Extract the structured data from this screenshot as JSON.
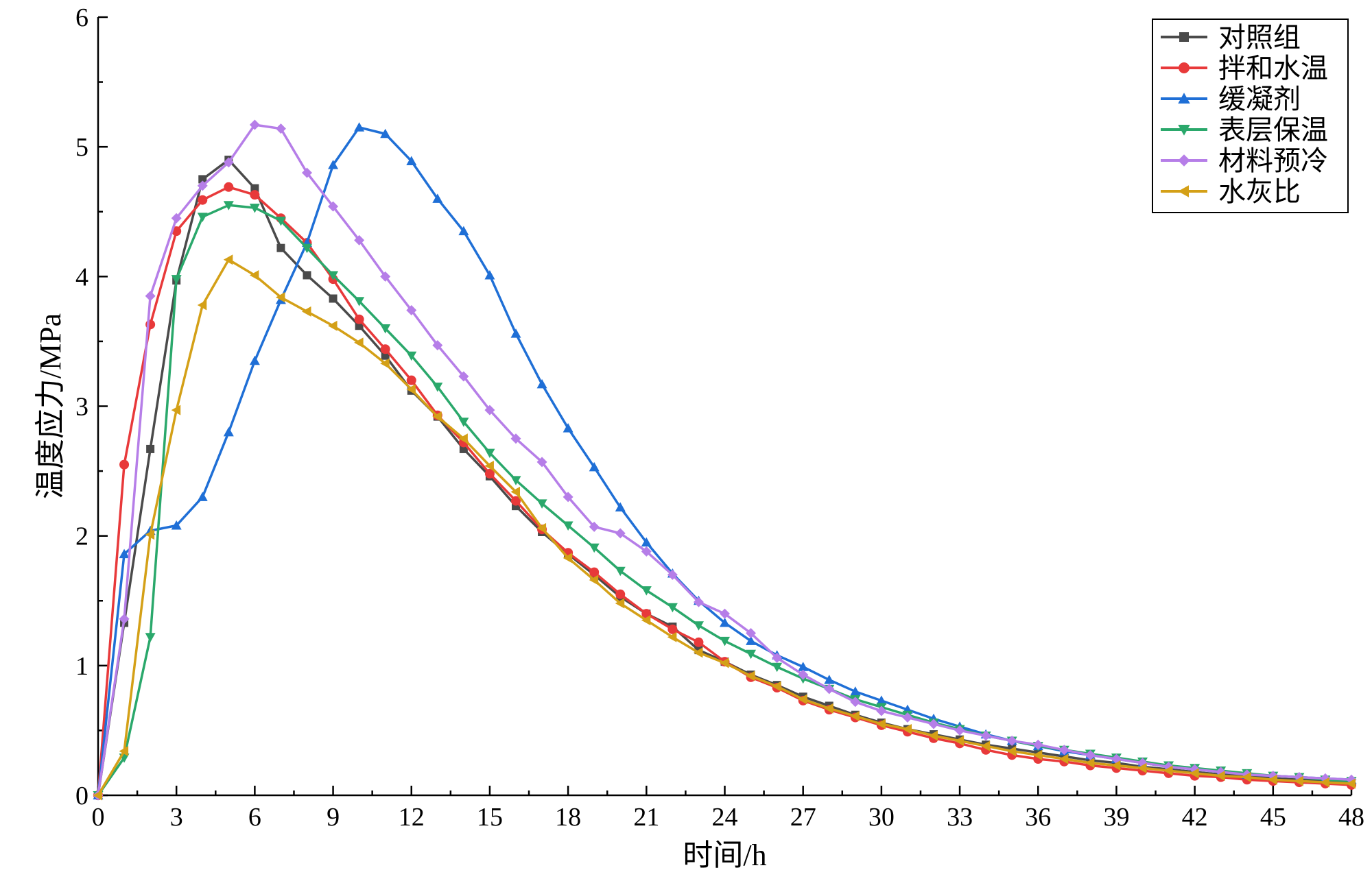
{
  "chart_data": {
    "type": "line",
    "xlabel": "时间/h",
    "ylabel": "温度应力/MPa",
    "xlim": [
      0,
      48
    ],
    "ylim": [
      0,
      6
    ],
    "xticks": [
      0,
      3,
      6,
      9,
      12,
      15,
      18,
      21,
      24,
      27,
      30,
      33,
      36,
      39,
      42,
      45,
      48
    ],
    "yticks": [
      0,
      1,
      2,
      3,
      4,
      5,
      6
    ],
    "grid": false,
    "legend_position": "top-right",
    "x": [
      0,
      1,
      2,
      3,
      4,
      5,
      6,
      7,
      8,
      9,
      10,
      11,
      12,
      13,
      14,
      15,
      16,
      17,
      18,
      19,
      20,
      21,
      22,
      23,
      24,
      25,
      26,
      27,
      28,
      29,
      30,
      31,
      32,
      33,
      34,
      35,
      36,
      37,
      38,
      39,
      40,
      41,
      42,
      43,
      44,
      45,
      46,
      47,
      48
    ],
    "series": [
      {
        "name": "对照组",
        "color": "#4a4a4a",
        "marker": "square",
        "values": [
          0,
          1.33,
          2.67,
          3.97,
          4.75,
          4.9,
          4.68,
          4.22,
          4.01,
          3.83,
          3.62,
          3.39,
          3.12,
          2.92,
          2.67,
          2.46,
          2.23,
          2.03,
          1.86,
          1.7,
          1.53,
          1.4,
          1.3,
          1.12,
          1.03,
          0.93,
          0.85,
          0.76,
          0.69,
          0.62,
          0.56,
          0.51,
          0.47,
          0.43,
          0.39,
          0.36,
          0.33,
          0.3,
          0.27,
          0.25,
          0.22,
          0.2,
          0.18,
          0.16,
          0.15,
          0.13,
          0.12,
          0.11,
          0.1
        ]
      },
      {
        "name": "拌和水温",
        "color": "#e8393a",
        "marker": "circle",
        "values": [
          0,
          2.55,
          3.63,
          4.35,
          4.59,
          4.69,
          4.63,
          4.45,
          4.26,
          3.98,
          3.67,
          3.44,
          3.2,
          2.93,
          2.72,
          2.48,
          2.27,
          2.05,
          1.87,
          1.72,
          1.55,
          1.4,
          1.28,
          1.18,
          1.03,
          0.91,
          0.83,
          0.73,
          0.66,
          0.6,
          0.54,
          0.49,
          0.44,
          0.4,
          0.35,
          0.31,
          0.28,
          0.26,
          0.23,
          0.21,
          0.19,
          0.17,
          0.15,
          0.14,
          0.12,
          0.11,
          0.1,
          0.09,
          0.08
        ]
      },
      {
        "name": "缓凝剂",
        "color": "#1f6fd6",
        "marker": "triangle-up",
        "values": [
          0,
          1.86,
          2.04,
          2.08,
          2.3,
          2.8,
          3.35,
          3.82,
          4.26,
          4.86,
          5.15,
          5.1,
          4.89,
          4.6,
          4.35,
          4.01,
          3.56,
          3.17,
          2.83,
          2.53,
          2.22,
          1.95,
          1.71,
          1.5,
          1.33,
          1.19,
          1.08,
          0.99,
          0.89,
          0.8,
          0.73,
          0.66,
          0.59,
          0.53,
          0.47,
          0.42,
          0.38,
          0.34,
          0.31,
          0.28,
          0.25,
          0.22,
          0.2,
          0.18,
          0.16,
          0.15,
          0.14,
          0.13,
          0.12
        ]
      },
      {
        "name": "表层保温",
        "color": "#2aa86b",
        "marker": "triangle-down",
        "values": [
          0,
          0.29,
          1.22,
          3.98,
          4.46,
          4.55,
          4.53,
          4.43,
          4.22,
          4.01,
          3.81,
          3.6,
          3.39,
          3.15,
          2.88,
          2.64,
          2.43,
          2.25,
          2.08,
          1.91,
          1.73,
          1.58,
          1.45,
          1.31,
          1.19,
          1.09,
          0.99,
          0.9,
          0.82,
          0.74,
          0.68,
          0.62,
          0.56,
          0.51,
          0.46,
          0.42,
          0.38,
          0.35,
          0.32,
          0.29,
          0.26,
          0.23,
          0.21,
          0.19,
          0.17,
          0.15,
          0.14,
          0.12,
          0.11
        ]
      },
      {
        "name": "材料预冷",
        "color": "#b67ee8",
        "marker": "diamond",
        "values": [
          0,
          1.36,
          3.85,
          4.45,
          4.7,
          4.88,
          5.17,
          5.14,
          4.8,
          4.54,
          4.28,
          4.0,
          3.74,
          3.47,
          3.23,
          2.97,
          2.75,
          2.57,
          2.3,
          2.07,
          2.02,
          1.88,
          1.7,
          1.49,
          1.4,
          1.25,
          1.06,
          0.93,
          0.82,
          0.72,
          0.65,
          0.6,
          0.55,
          0.5,
          0.46,
          0.42,
          0.39,
          0.35,
          0.31,
          0.28,
          0.25,
          0.22,
          0.2,
          0.18,
          0.16,
          0.15,
          0.14,
          0.13,
          0.12
        ]
      },
      {
        "name": "水灰比",
        "color": "#d4a017",
        "marker": "triangle-left",
        "values": [
          0,
          0.34,
          2.01,
          2.97,
          3.78,
          4.13,
          4.01,
          3.84,
          3.73,
          3.62,
          3.49,
          3.33,
          3.13,
          2.92,
          2.75,
          2.54,
          2.34,
          2.06,
          1.83,
          1.66,
          1.48,
          1.35,
          1.22,
          1.1,
          1.02,
          0.92,
          0.84,
          0.74,
          0.67,
          0.61,
          0.55,
          0.51,
          0.46,
          0.42,
          0.38,
          0.34,
          0.31,
          0.28,
          0.25,
          0.23,
          0.21,
          0.19,
          0.17,
          0.15,
          0.14,
          0.12,
          0.11,
          0.1,
          0.09
        ]
      }
    ]
  }
}
